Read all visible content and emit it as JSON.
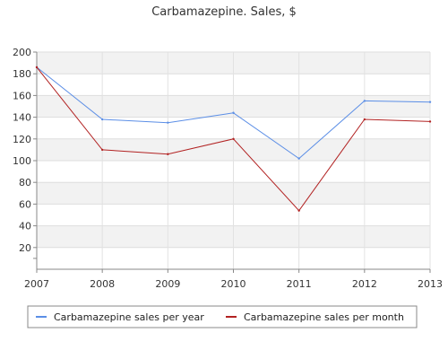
{
  "chart_data": {
    "type": "line",
    "title": "Carbamazepine. Sales, $",
    "xlabel": "",
    "ylabel": "",
    "x": [
      "2007",
      "2008",
      "2009",
      "2010",
      "2011",
      "2012",
      "2013"
    ],
    "ylim": [
      0,
      200
    ],
    "yticks": [
      20,
      40,
      60,
      80,
      100,
      120,
      140,
      160,
      180,
      200
    ],
    "grid": true,
    "legend_position": "bottom",
    "series": [
      {
        "name": "Carbamazepine sales per year",
        "color": "#5b8ee6",
        "values": [
          186,
          138,
          135,
          144,
          102,
          155,
          154
        ]
      },
      {
        "name": "Carbamazepine sales per month",
        "color": "#b22222",
        "values": [
          186,
          110,
          106,
          120,
          54,
          138,
          136
        ]
      }
    ]
  }
}
